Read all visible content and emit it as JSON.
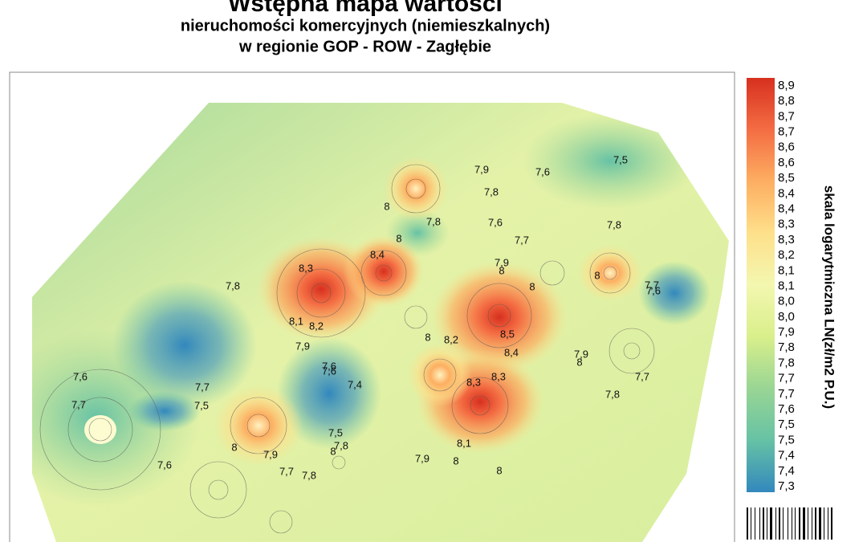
{
  "header": {
    "title": "Wstępna mapa wartości",
    "subtitle": [
      "nieruchomości komercyjnych (niemieszkalnych)",
      "w regionie GOP - ROW - Zagłębie"
    ]
  },
  "map": {
    "contour_labels": [
      "7,9",
      "7,6",
      "7,5",
      "7,8",
      "7,8",
      "8",
      "7,6",
      "7,8",
      "8",
      "7,7",
      "7,9",
      "8",
      "8,3",
      "8,4",
      "7,8",
      "8",
      "8",
      "7,7",
      "7,6",
      "8,1",
      "8,2",
      "8,5",
      "8",
      "8,2",
      "7,9",
      "8,4",
      "7,9",
      "8",
      "7,6",
      "7,6",
      "7,4",
      "8,3",
      "8,3",
      "7,6",
      "7,7",
      "7,7",
      "7,7",
      "7,5",
      "7,8",
      "7,5",
      "7,8",
      "8",
      "8",
      "7,9",
      "7,7",
      "7,8",
      "8,1",
      "7,9",
      "8",
      "8",
      "7,6"
    ]
  },
  "colorbar": {
    "title": "skala logarytmiczna LN(zł/m2 P.U.)",
    "colors": [
      "#d7301f",
      "#f46d43",
      "#fdae61",
      "#fee08b",
      "#f3f7b0",
      "#d9ef8b",
      "#99d594",
      "#66c2a5",
      "#3288bd"
    ],
    "labels": [
      "8,9",
      "8,8",
      "8,7",
      "8,7",
      "8,6",
      "8,6",
      "8,5",
      "8,4",
      "8,4",
      "8,3",
      "8,3",
      "8,2",
      "8,1",
      "8,1",
      "8,0",
      "8,0",
      "7,9",
      "7,8",
      "7,8",
      "7,7",
      "7,7",
      "7,6",
      "7,5",
      "7,5",
      "7,4",
      "7,4",
      "7,3"
    ]
  }
}
